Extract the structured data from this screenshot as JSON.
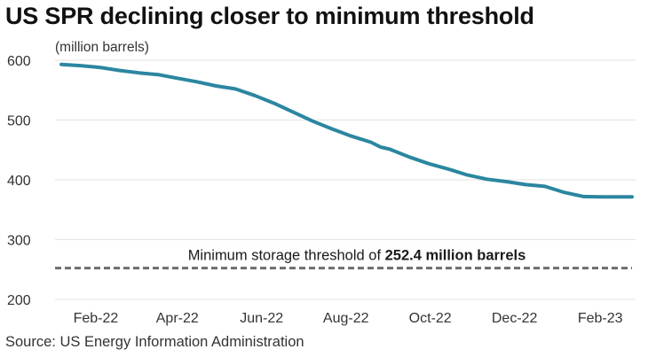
{
  "title": "US SPR declining closer to minimum threshold",
  "source": "Source: US Energy Information Administration",
  "colors": {
    "series": "#2b86a0",
    "threshold": "#6d6d6d",
    "grid": "#e3e3e3"
  },
  "chart_data": {
    "type": "line",
    "title": "US SPR declining closer to minimum threshold",
    "ylabel": "(million barrels)",
    "xlabel": "",
    "ylim": [
      200,
      600
    ],
    "yticks": [
      200,
      300,
      400,
      500,
      600
    ],
    "grid": "horizontal",
    "legend": "none",
    "x_tick_labels": [
      {
        "date": "2022-02-01",
        "label": "Feb-22"
      },
      {
        "date": "2022-04-01",
        "label": "Apr-22"
      },
      {
        "date": "2022-06-01",
        "label": "Jun-22"
      },
      {
        "date": "2022-08-01",
        "label": "Aug-22"
      },
      {
        "date": "2022-10-01",
        "label": "Oct-22"
      },
      {
        "date": "2022-12-01",
        "label": "Dec-22"
      },
      {
        "date": "2023-02-01",
        "label": "Feb-23"
      }
    ],
    "series": [
      {
        "points": [
          {
            "x": "2022-01-07",
            "y": 593
          },
          {
            "x": "2022-01-21",
            "y": 591
          },
          {
            "x": "2022-02-04",
            "y": 588
          },
          {
            "x": "2022-02-18",
            "y": 583
          },
          {
            "x": "2022-03-04",
            "y": 579
          },
          {
            "x": "2022-03-18",
            "y": 576
          },
          {
            "x": "2022-04-01",
            "y": 570
          },
          {
            "x": "2022-04-15",
            "y": 564
          },
          {
            "x": "2022-04-29",
            "y": 557
          },
          {
            "x": "2022-05-13",
            "y": 552
          },
          {
            "x": "2022-05-27",
            "y": 541
          },
          {
            "x": "2022-06-10",
            "y": 528
          },
          {
            "x": "2022-06-24",
            "y": 513
          },
          {
            "x": "2022-07-08",
            "y": 498
          },
          {
            "x": "2022-07-22",
            "y": 485
          },
          {
            "x": "2022-08-05",
            "y": 473
          },
          {
            "x": "2022-08-19",
            "y": 463
          },
          {
            "x": "2022-08-26",
            "y": 455
          },
          {
            "x": "2022-09-02",
            "y": 451
          },
          {
            "x": "2022-09-16",
            "y": 438
          },
          {
            "x": "2022-09-30",
            "y": 427
          },
          {
            "x": "2022-10-14",
            "y": 418
          },
          {
            "x": "2022-10-28",
            "y": 408
          },
          {
            "x": "2022-11-11",
            "y": 401
          },
          {
            "x": "2022-11-25",
            "y": 397
          },
          {
            "x": "2022-12-09",
            "y": 392
          },
          {
            "x": "2022-12-23",
            "y": 389
          },
          {
            "x": "2023-01-06",
            "y": 379
          },
          {
            "x": "2023-01-20",
            "y": 372
          },
          {
            "x": "2023-02-03",
            "y": 371.6
          },
          {
            "x": "2023-02-17",
            "y": 371.6
          },
          {
            "x": "2023-02-24",
            "y": 371.6
          }
        ]
      }
    ],
    "threshold": {
      "value": 252.4,
      "label_prefix": "Minimum storage threshold of ",
      "label_bold": "252.4 million barrels",
      "style": "dashed"
    }
  }
}
